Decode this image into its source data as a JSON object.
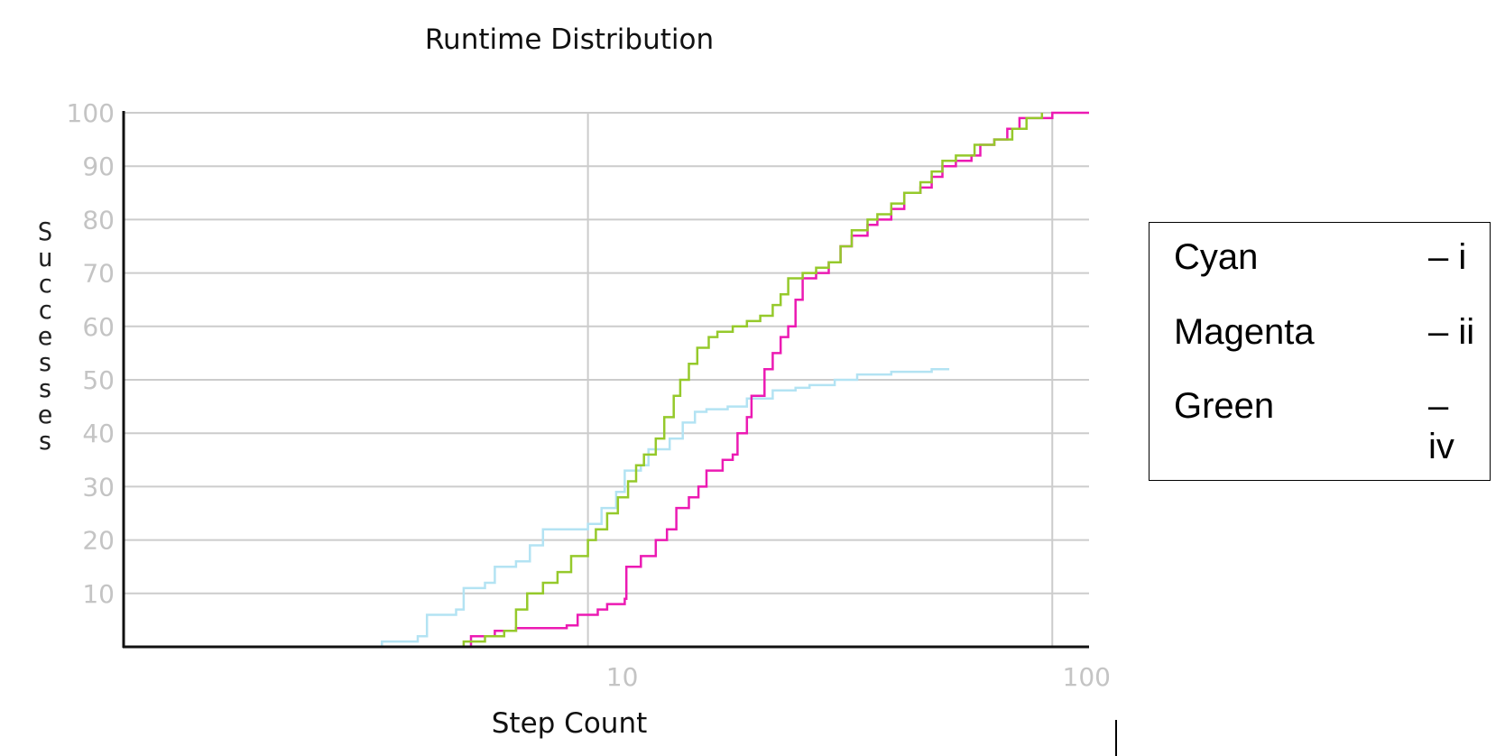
{
  "chart_data": {
    "type": "line",
    "title": "Runtime Distribution",
    "xlabel": "Step Count",
    "ylabel": "Successes",
    "xscale": "log",
    "xlim": [
      1,
      120
    ],
    "ylim": [
      0,
      100
    ],
    "x_ticks": [
      {
        "value": 10,
        "label": "10"
      },
      {
        "value": 100,
        "label": "100"
      }
    ],
    "y_ticks": [
      {
        "value": 10,
        "label": "10"
      },
      {
        "value": 20,
        "label": "20"
      },
      {
        "value": 30,
        "label": "30"
      },
      {
        "value": 40,
        "label": "40"
      },
      {
        "value": 50,
        "label": "50"
      },
      {
        "value": 60,
        "label": "60"
      },
      {
        "value": 70,
        "label": "70"
      },
      {
        "value": 80,
        "label": "80"
      },
      {
        "value": 90,
        "label": "90"
      },
      {
        "value": 100,
        "label": "100"
      }
    ],
    "grid": true,
    "series": [
      {
        "color": "#b3e3f3",
        "points": [
          [
            3.0,
            0
          ],
          [
            3.6,
            1
          ],
          [
            4.3,
            2
          ],
          [
            4.5,
            6
          ],
          [
            5.2,
            7
          ],
          [
            5.4,
            11
          ],
          [
            6.0,
            12
          ],
          [
            6.3,
            15
          ],
          [
            7.0,
            16
          ],
          [
            7.5,
            19
          ],
          [
            8.0,
            22
          ],
          [
            9.0,
            22
          ],
          [
            10.0,
            23
          ],
          [
            10.7,
            26
          ],
          [
            11.5,
            29
          ],
          [
            12.0,
            33
          ],
          [
            13.0,
            34
          ],
          [
            13.5,
            37
          ],
          [
            15.0,
            39
          ],
          [
            16.0,
            42
          ],
          [
            17.0,
            44
          ],
          [
            18.0,
            44.5
          ],
          [
            20.0,
            45
          ],
          [
            22.0,
            46.5
          ],
          [
            25.0,
            48
          ],
          [
            28.0,
            48.5
          ],
          [
            30.0,
            49
          ],
          [
            34.0,
            50
          ],
          [
            38.0,
            51
          ],
          [
            45.0,
            51.5
          ],
          [
            55.0,
            52
          ],
          [
            60.0,
            52
          ]
        ]
      },
      {
        "color": "#ec1ab3",
        "points": [
          [
            5.0,
            0
          ],
          [
            5.6,
            2
          ],
          [
            6.3,
            3
          ],
          [
            7.0,
            3.5
          ],
          [
            9.0,
            4
          ],
          [
            9.5,
            6
          ],
          [
            10.5,
            7
          ],
          [
            11.0,
            8
          ],
          [
            12.0,
            9
          ],
          [
            12.1,
            15
          ],
          [
            13.0,
            17
          ],
          [
            14.0,
            20
          ],
          [
            14.8,
            22
          ],
          [
            15.5,
            26
          ],
          [
            16.5,
            28
          ],
          [
            17.3,
            30
          ],
          [
            18.0,
            33
          ],
          [
            19.5,
            35
          ],
          [
            20.5,
            36
          ],
          [
            21.0,
            40
          ],
          [
            22.0,
            43
          ],
          [
            22.5,
            47
          ],
          [
            24.0,
            52
          ],
          [
            25.0,
            55
          ],
          [
            26.0,
            58
          ],
          [
            27.0,
            60
          ],
          [
            28.0,
            65
          ],
          [
            29.0,
            69
          ],
          [
            31.0,
            70
          ],
          [
            33.0,
            72
          ],
          [
            35.0,
            75
          ],
          [
            37.0,
            77
          ],
          [
            40.0,
            79
          ],
          [
            42.0,
            80
          ],
          [
            45.0,
            82
          ],
          [
            48.0,
            85
          ],
          [
            52.0,
            86
          ],
          [
            55.0,
            88
          ],
          [
            58.0,
            90
          ],
          [
            62.0,
            91
          ],
          [
            67.0,
            92
          ],
          [
            70.0,
            94
          ],
          [
            75.0,
            95
          ],
          [
            80.0,
            97
          ],
          [
            85.0,
            99
          ],
          [
            100.0,
            100
          ],
          [
            120.0,
            100
          ]
        ]
      },
      {
        "color": "#95c92b",
        "points": [
          [
            5.0,
            0
          ],
          [
            5.4,
            1
          ],
          [
            6.0,
            2
          ],
          [
            6.6,
            3
          ],
          [
            7.0,
            7
          ],
          [
            7.4,
            10
          ],
          [
            8.0,
            12
          ],
          [
            8.6,
            14
          ],
          [
            9.2,
            17
          ],
          [
            10.0,
            20
          ],
          [
            10.4,
            22
          ],
          [
            11.0,
            25
          ],
          [
            11.6,
            28
          ],
          [
            12.2,
            31
          ],
          [
            12.7,
            34
          ],
          [
            13.2,
            36
          ],
          [
            14.0,
            39
          ],
          [
            14.6,
            43
          ],
          [
            15.3,
            47
          ],
          [
            15.8,
            50
          ],
          [
            16.5,
            53
          ],
          [
            17.2,
            56
          ],
          [
            18.2,
            58
          ],
          [
            19.0,
            59
          ],
          [
            20.5,
            60
          ],
          [
            22.0,
            61
          ],
          [
            23.5,
            62
          ],
          [
            25.0,
            64
          ],
          [
            26.0,
            66
          ],
          [
            27.0,
            69
          ],
          [
            29.0,
            70
          ],
          [
            31.0,
            71
          ],
          [
            33.0,
            72
          ],
          [
            35.0,
            75
          ],
          [
            37.0,
            78
          ],
          [
            40.0,
            80
          ],
          [
            42.0,
            81
          ],
          [
            45.0,
            83
          ],
          [
            48.0,
            85
          ],
          [
            52.0,
            87
          ],
          [
            55.0,
            89
          ],
          [
            58.0,
            91
          ],
          [
            62.0,
            92
          ],
          [
            68.0,
            94
          ],
          [
            75.0,
            95
          ],
          [
            82.0,
            97
          ],
          [
            88.0,
            99
          ],
          [
            95.0,
            100
          ]
        ]
      }
    ]
  },
  "legend": {
    "entries": [
      {
        "name": "Cyan",
        "code": "– i"
      },
      {
        "name": "Magenta",
        "code": "– ii"
      },
      {
        "name": "Green",
        "code": "– iv"
      }
    ]
  }
}
